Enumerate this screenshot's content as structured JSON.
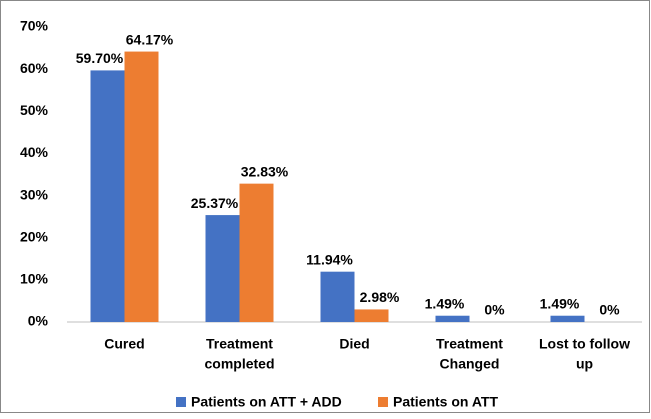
{
  "chart_data": {
    "type": "bar",
    "categories": [
      [
        "Cured"
      ],
      [
        "Treatment",
        "completed"
      ],
      [
        "Died"
      ],
      [
        "Treatment",
        "Changed"
      ],
      [
        "Lost to follow",
        "up"
      ]
    ],
    "series": [
      {
        "name": "Patients on ATT + ADD",
        "color": "#4472c4",
        "values": [
          59.7,
          25.37,
          11.94,
          1.49,
          1.49
        ],
        "value_labels": [
          "59.70%",
          "25.37%",
          "11.94%",
          "1.49%",
          "1.49%"
        ]
      },
      {
        "name": "Patients on ATT",
        "color": "#ed7d31",
        "values": [
          64.17,
          32.83,
          2.98,
          0,
          0
        ],
        "value_labels": [
          "64.17%",
          "32.83%",
          "2.98%",
          "0%",
          "0%"
        ]
      }
    ],
    "ylim": [
      0,
      70
    ],
    "yticks": [
      {
        "value": 0,
        "label": "0%"
      },
      {
        "value": 10,
        "label": "10%"
      },
      {
        "value": 20,
        "label": "20%"
      },
      {
        "value": 30,
        "label": "30%"
      },
      {
        "value": 40,
        "label": "40%"
      },
      {
        "value": 50,
        "label": "50%"
      },
      {
        "value": 60,
        "label": "60%"
      },
      {
        "value": 70,
        "label": "70%"
      }
    ],
    "grid": false,
    "legend": "bottom"
  }
}
